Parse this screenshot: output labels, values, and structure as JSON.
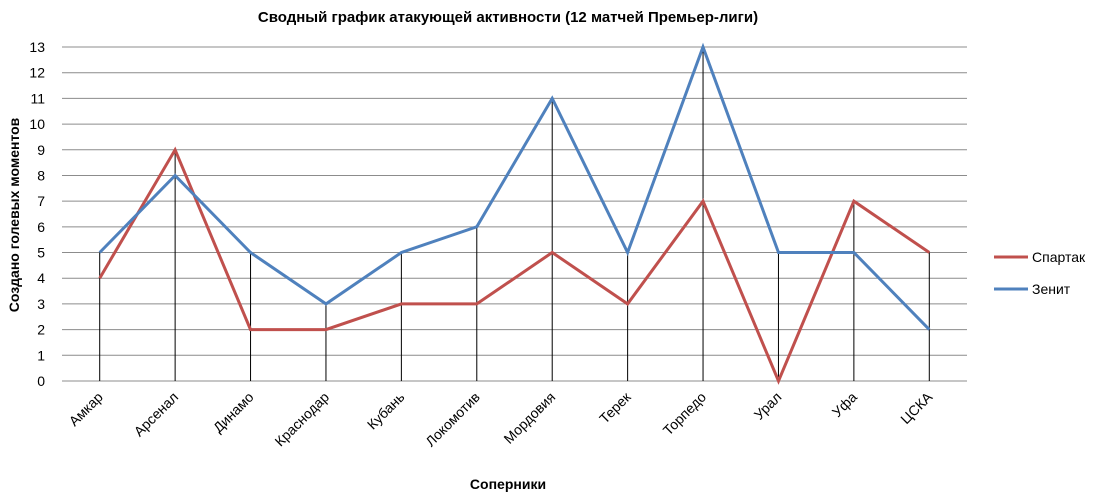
{
  "chart_data": {
    "type": "line",
    "title": "Сводный график атакующей активности (12 матчей Премьер-лиги)",
    "xlabel": "Соперники",
    "ylabel": "Создано голевых  моментов",
    "ylim": [
      0,
      13
    ],
    "yticks": [
      "0",
      "1",
      "2",
      "3",
      "4",
      "5",
      "6",
      "7",
      "8",
      "9",
      "10",
      "11",
      "12",
      "13"
    ],
    "grid": "horizontal",
    "drop_lines": true,
    "legend_position": "right",
    "categories": [
      "Амкар",
      "Арсенал",
      "Динамо",
      "Краснодар",
      "Кубань",
      "Локомотив",
      "Мордовия",
      "Терек",
      "Торпедо",
      "Урал",
      "Уфа",
      "ЦСКА"
    ],
    "series": [
      {
        "name": "Спартак",
        "color": "#c0504d",
        "values": [
          4,
          9,
          2,
          2,
          3,
          3,
          5,
          3,
          7,
          0,
          7,
          5
        ]
      },
      {
        "name": "Зенит",
        "color": "#4f81bd",
        "values": [
          5,
          8,
          5,
          3,
          5,
          6,
          11,
          5,
          13,
          5,
          5,
          2
        ]
      }
    ]
  }
}
